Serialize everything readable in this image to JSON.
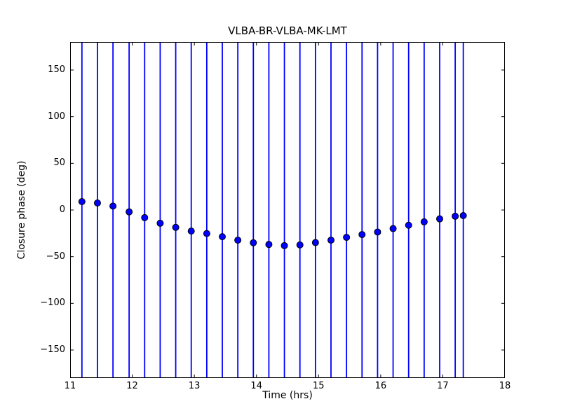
{
  "figure": {
    "background_color": "#ffffff",
    "spine_color": "#000000"
  },
  "chart_data": {
    "type": "scatter",
    "title": "VLBA-BR-VLBA-MK-LMT",
    "xlabel": "Time (hrs)",
    "ylabel": "Closure phase (deg)",
    "xlim": [
      11,
      18
    ],
    "ylim": [
      -180,
      180
    ],
    "xticks": [
      11,
      12,
      13,
      14,
      15,
      16,
      17,
      18
    ],
    "xtick_labels": [
      "11",
      "12",
      "13",
      "14",
      "15",
      "16",
      "17",
      "18"
    ],
    "yticks": [
      -150,
      -100,
      -50,
      0,
      50,
      100,
      150
    ],
    "ytick_labels": [
      "−150",
      "−100",
      "−50",
      "0",
      "50",
      "100",
      "150"
    ],
    "tick_direction": "in",
    "grid": false,
    "legend": null,
    "marker": "circle",
    "marker_color": "#0000ff",
    "marker_edge_color": "#000000",
    "errorbar_color": "#0000ff",
    "errorbars_full_range": true,
    "errorbar_note": "error bars exceed ylim and are clipped to full plot height",
    "x": [
      11.19,
      11.44,
      11.69,
      11.95,
      12.2,
      12.45,
      12.7,
      12.95,
      13.2,
      13.45,
      13.7,
      13.95,
      14.2,
      14.45,
      14.7,
      14.95,
      15.2,
      15.45,
      15.7,
      15.95,
      16.2,
      16.45,
      16.7,
      16.95,
      17.2,
      17.33
    ],
    "y": [
      9.0,
      7.5,
      4.2,
      -2.0,
      -8.2,
      -14.2,
      -18.6,
      -22.6,
      -25.2,
      -28.6,
      -32.3,
      -35.1,
      -36.9,
      -38.2,
      -37.4,
      -34.9,
      -32.3,
      -29.3,
      -26.3,
      -23.6,
      -19.9,
      -16.3,
      -12.7,
      -9.5,
      -6.7,
      -6.0
    ]
  }
}
